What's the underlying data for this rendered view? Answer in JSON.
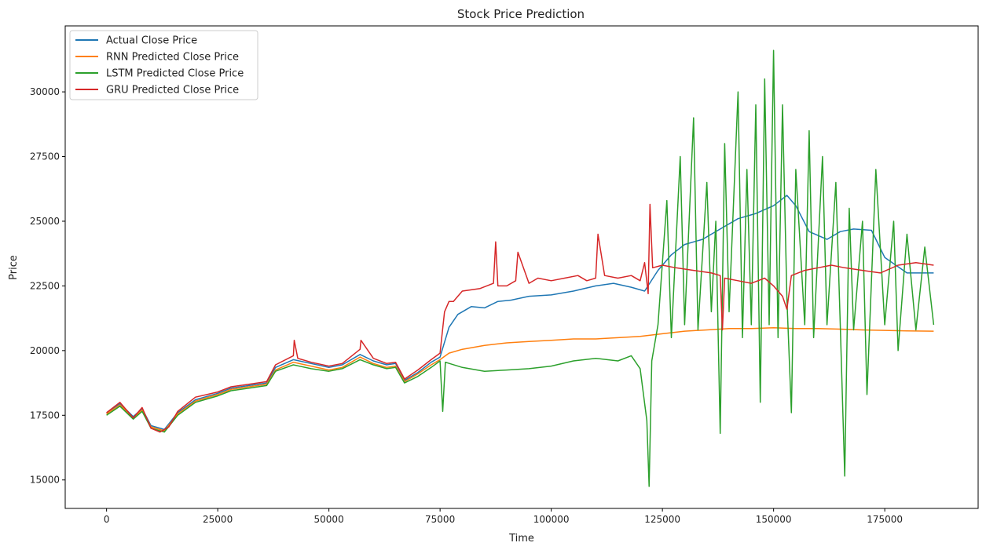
{
  "chart_data": {
    "type": "line",
    "title": "Stock Price Prediction",
    "xlabel": "Time",
    "ylabel": "Price",
    "xlim": [
      -9300,
      196000
    ],
    "ylim": [
      13900,
      32550
    ],
    "xticks": [
      0,
      25000,
      50000,
      75000,
      100000,
      125000,
      150000,
      175000
    ],
    "yticks": [
      15000,
      17500,
      20000,
      22500,
      25000,
      27500,
      30000
    ],
    "grid": false,
    "legend_position": "top-left",
    "series": [
      {
        "name": "Actual Close Price",
        "color": "#1f77b4",
        "points": [
          [
            0,
            17600
          ],
          [
            3000,
            17950
          ],
          [
            6000,
            17450
          ],
          [
            8000,
            17750
          ],
          [
            10000,
            17100
          ],
          [
            13000,
            16950
          ],
          [
            16000,
            17600
          ],
          [
            20000,
            18100
          ],
          [
            25000,
            18350
          ],
          [
            28000,
            18550
          ],
          [
            32000,
            18650
          ],
          [
            36000,
            18750
          ],
          [
            38000,
            19350
          ],
          [
            42000,
            19650
          ],
          [
            46000,
            19500
          ],
          [
            50000,
            19350
          ],
          [
            53000,
            19450
          ],
          [
            57000,
            19850
          ],
          [
            60000,
            19600
          ],
          [
            63000,
            19450
          ],
          [
            65000,
            19500
          ],
          [
            67000,
            18850
          ],
          [
            70000,
            19150
          ],
          [
            73000,
            19550
          ],
          [
            75000,
            19750
          ],
          [
            77000,
            20900
          ],
          [
            79000,
            21400
          ],
          [
            82000,
            21700
          ],
          [
            85000,
            21650
          ],
          [
            88000,
            21900
          ],
          [
            91000,
            21950
          ],
          [
            95000,
            22100
          ],
          [
            100000,
            22150
          ],
          [
            105000,
            22300
          ],
          [
            110000,
            22500
          ],
          [
            114000,
            22600
          ],
          [
            118000,
            22450
          ],
          [
            121000,
            22300
          ],
          [
            124000,
            23100
          ],
          [
            127000,
            23700
          ],
          [
            130000,
            24100
          ],
          [
            134000,
            24300
          ],
          [
            138000,
            24700
          ],
          [
            142000,
            25100
          ],
          [
            146000,
            25300
          ],
          [
            150000,
            25600
          ],
          [
            153000,
            26000
          ],
          [
            155000,
            25600
          ],
          [
            158000,
            24600
          ],
          [
            162000,
            24300
          ],
          [
            165000,
            24600
          ],
          [
            168000,
            24700
          ],
          [
            172000,
            24650
          ],
          [
            175000,
            23600
          ],
          [
            180000,
            23000
          ],
          [
            186000,
            23000
          ]
        ]
      },
      {
        "name": "RNN Predicted Close Price",
        "color": "#ff7f0e",
        "points": [
          [
            0,
            17550
          ],
          [
            3000,
            17900
          ],
          [
            6000,
            17400
          ],
          [
            8000,
            17700
          ],
          [
            10000,
            17050
          ],
          [
            13000,
            16900
          ],
          [
            16000,
            17550
          ],
          [
            20000,
            18050
          ],
          [
            25000,
            18300
          ],
          [
            28000,
            18500
          ],
          [
            32000,
            18600
          ],
          [
            36000,
            18700
          ],
          [
            38000,
            19250
          ],
          [
            42000,
            19550
          ],
          [
            46000,
            19400
          ],
          [
            50000,
            19250
          ],
          [
            53000,
            19350
          ],
          [
            57000,
            19750
          ],
          [
            60000,
            19500
          ],
          [
            63000,
            19350
          ],
          [
            65000,
            19400
          ],
          [
            67000,
            18800
          ],
          [
            70000,
            19100
          ],
          [
            73000,
            19450
          ],
          [
            75000,
            19650
          ],
          [
            77000,
            19900
          ],
          [
            80000,
            20050
          ],
          [
            85000,
            20200
          ],
          [
            90000,
            20300
          ],
          [
            95000,
            20350
          ],
          [
            100000,
            20400
          ],
          [
            105000,
            20450
          ],
          [
            110000,
            20450
          ],
          [
            115000,
            20500
          ],
          [
            120000,
            20550
          ],
          [
            125000,
            20650
          ],
          [
            130000,
            20750
          ],
          [
            135000,
            20800
          ],
          [
            140000,
            20850
          ],
          [
            145000,
            20850
          ],
          [
            150000,
            20880
          ],
          [
            155000,
            20850
          ],
          [
            160000,
            20850
          ],
          [
            165000,
            20830
          ],
          [
            170000,
            20800
          ],
          [
            175000,
            20780
          ],
          [
            180000,
            20760
          ],
          [
            186000,
            20750
          ]
        ]
      },
      {
        "name": "LSTM Predicted Close Price",
        "color": "#2ca02c",
        "points": [
          [
            0,
            17500
          ],
          [
            3000,
            17850
          ],
          [
            6000,
            17350
          ],
          [
            8000,
            17650
          ],
          [
            10000,
            17000
          ],
          [
            13000,
            16850
          ],
          [
            16000,
            17500
          ],
          [
            20000,
            18000
          ],
          [
            25000,
            18250
          ],
          [
            28000,
            18450
          ],
          [
            32000,
            18550
          ],
          [
            36000,
            18650
          ],
          [
            38000,
            19200
          ],
          [
            42000,
            19450
          ],
          [
            46000,
            19300
          ],
          [
            50000,
            19200
          ],
          [
            53000,
            19300
          ],
          [
            57000,
            19650
          ],
          [
            60000,
            19450
          ],
          [
            63000,
            19300
          ],
          [
            65000,
            19350
          ],
          [
            67000,
            18750
          ],
          [
            70000,
            19000
          ],
          [
            73000,
            19350
          ],
          [
            75000,
            19600
          ],
          [
            75600,
            17650
          ],
          [
            76200,
            19550
          ],
          [
            80000,
            19350
          ],
          [
            85000,
            19200
          ],
          [
            90000,
            19250
          ],
          [
            95000,
            19300
          ],
          [
            100000,
            19400
          ],
          [
            105000,
            19600
          ],
          [
            110000,
            19700
          ],
          [
            115000,
            19600
          ],
          [
            118000,
            19800
          ],
          [
            120000,
            19300
          ],
          [
            121500,
            17300
          ],
          [
            122000,
            14750
          ],
          [
            122600,
            19600
          ],
          [
            124000,
            21000
          ],
          [
            126000,
            25800
          ],
          [
            127000,
            20500
          ],
          [
            129000,
            27500
          ],
          [
            130000,
            21000
          ],
          [
            132000,
            29000
          ],
          [
            133000,
            20800
          ],
          [
            135000,
            26500
          ],
          [
            136000,
            21500
          ],
          [
            137000,
            25000
          ],
          [
            138000,
            16800
          ],
          [
            139000,
            28000
          ],
          [
            140000,
            21500
          ],
          [
            142000,
            30000
          ],
          [
            143000,
            20500
          ],
          [
            144000,
            27000
          ],
          [
            145000,
            21000
          ],
          [
            146000,
            29500
          ],
          [
            147000,
            18000
          ],
          [
            148000,
            30500
          ],
          [
            149000,
            21000
          ],
          [
            150000,
            31600
          ],
          [
            151000,
            20500
          ],
          [
            152000,
            29500
          ],
          [
            153000,
            22000
          ],
          [
            154000,
            17600
          ],
          [
            155000,
            27000
          ],
          [
            157000,
            21000
          ],
          [
            158000,
            28500
          ],
          [
            159000,
            20500
          ],
          [
            161000,
            27500
          ],
          [
            162000,
            21000
          ],
          [
            164000,
            26500
          ],
          [
            165000,
            21000
          ],
          [
            166000,
            15150
          ],
          [
            167000,
            25500
          ],
          [
            168000,
            20800
          ],
          [
            170000,
            25000
          ],
          [
            171000,
            18300
          ],
          [
            173000,
            27000
          ],
          [
            175000,
            21000
          ],
          [
            177000,
            25000
          ],
          [
            178000,
            20000
          ],
          [
            180000,
            24500
          ],
          [
            182000,
            20800
          ],
          [
            184000,
            24000
          ],
          [
            186000,
            21000
          ]
        ]
      },
      {
        "name": "GRU Predicted Close Price",
        "color": "#d62728",
        "points": [
          [
            0,
            17600
          ],
          [
            3000,
            18000
          ],
          [
            6000,
            17400
          ],
          [
            8000,
            17800
          ],
          [
            10000,
            17000
          ],
          [
            12000,
            16850
          ],
          [
            14000,
            17050
          ],
          [
            16000,
            17650
          ],
          [
            20000,
            18200
          ],
          [
            25000,
            18400
          ],
          [
            28000,
            18600
          ],
          [
            32000,
            18700
          ],
          [
            36000,
            18800
          ],
          [
            38000,
            19450
          ],
          [
            42000,
            19800
          ],
          [
            42200,
            20400
          ],
          [
            43000,
            19700
          ],
          [
            46000,
            19550
          ],
          [
            50000,
            19400
          ],
          [
            53000,
            19500
          ],
          [
            57000,
            20050
          ],
          [
            57200,
            20400
          ],
          [
            60000,
            19700
          ],
          [
            63000,
            19500
          ],
          [
            65000,
            19550
          ],
          [
            67000,
            18900
          ],
          [
            70000,
            19250
          ],
          [
            73000,
            19650
          ],
          [
            75000,
            19900
          ],
          [
            76000,
            21500
          ],
          [
            77000,
            21900
          ],
          [
            78000,
            21900
          ],
          [
            80000,
            22300
          ],
          [
            82000,
            22350
          ],
          [
            84000,
            22400
          ],
          [
            87000,
            22600
          ],
          [
            87500,
            24200
          ],
          [
            88000,
            22500
          ],
          [
            90000,
            22500
          ],
          [
            92000,
            22700
          ],
          [
            92500,
            23800
          ],
          [
            95000,
            22600
          ],
          [
            97000,
            22800
          ],
          [
            100000,
            22700
          ],
          [
            103000,
            22800
          ],
          [
            106000,
            22900
          ],
          [
            108000,
            22700
          ],
          [
            110000,
            22800
          ],
          [
            110500,
            24500
          ],
          [
            112000,
            22900
          ],
          [
            115000,
            22800
          ],
          [
            118000,
            22900
          ],
          [
            120000,
            22700
          ],
          [
            121000,
            23400
          ],
          [
            121800,
            22200
          ],
          [
            122200,
            25650
          ],
          [
            122800,
            23200
          ],
          [
            125000,
            23300
          ],
          [
            128000,
            23200
          ],
          [
            132000,
            23100
          ],
          [
            136000,
            23000
          ],
          [
            138000,
            22900
          ],
          [
            138500,
            20800
          ],
          [
            139000,
            22800
          ],
          [
            142000,
            22700
          ],
          [
            145000,
            22600
          ],
          [
            148000,
            22800
          ],
          [
            150000,
            22500
          ],
          [
            152000,
            22100
          ],
          [
            153000,
            21600
          ],
          [
            154000,
            22900
          ],
          [
            157000,
            23100
          ],
          [
            160000,
            23200
          ],
          [
            163000,
            23300
          ],
          [
            166000,
            23200
          ],
          [
            170000,
            23100
          ],
          [
            174000,
            23000
          ],
          [
            178000,
            23300
          ],
          [
            182000,
            23400
          ],
          [
            186000,
            23300
          ]
        ]
      }
    ]
  }
}
